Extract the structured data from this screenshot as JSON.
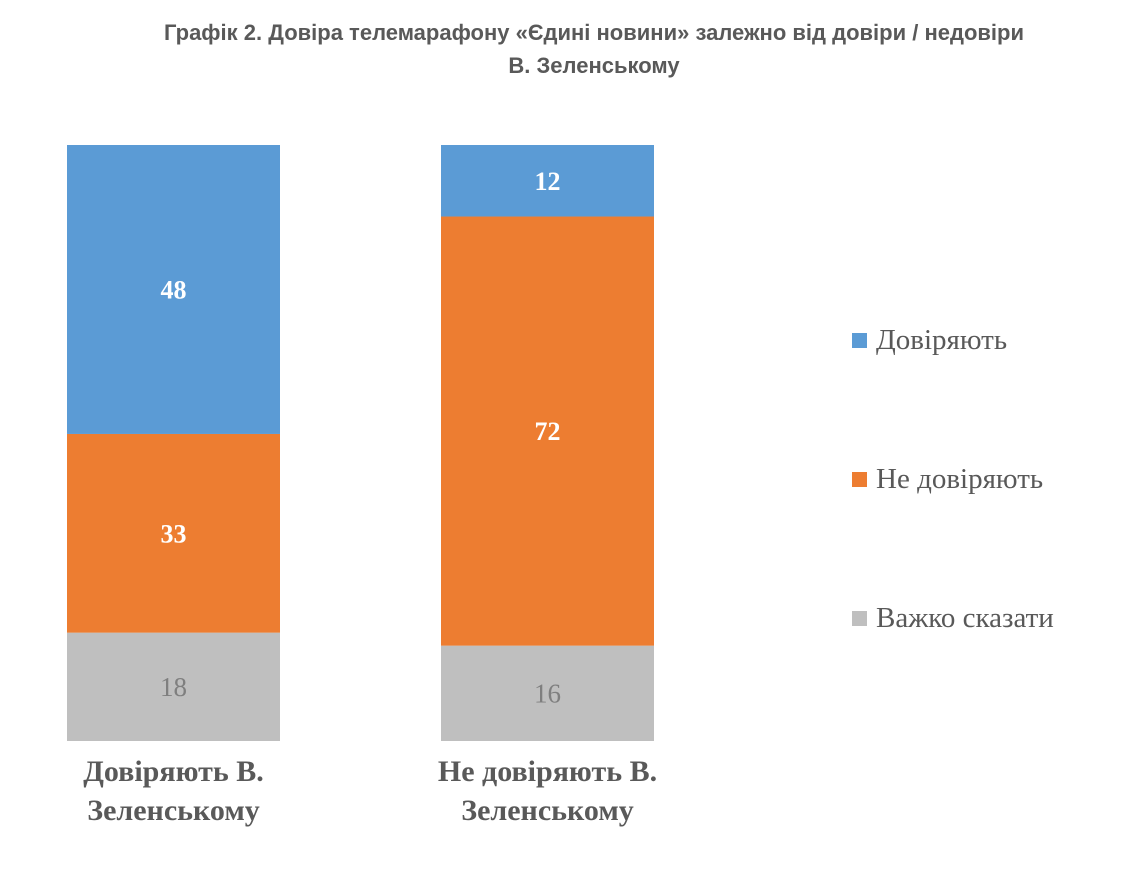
{
  "title": {
    "line1": "Графік 2. Довіра телемарафону «Єдині новини» залежно від довіри / недовіри",
    "line2": "В. Зеленському"
  },
  "chart_data": {
    "type": "bar",
    "stacked": true,
    "title": "Графік 2. Довіра телемарафону «Єдині новини» залежно від довіри / недовіри В. Зеленському",
    "categories": [
      [
        "Довіряють В.",
        "Зеленському"
      ],
      [
        "Не довіряють В.",
        "Зеленському"
      ]
    ],
    "series": [
      {
        "name": "Довіряють",
        "color": "#5b9bd5",
        "label_color": "#ffffff",
        "values": [
          48,
          12
        ]
      },
      {
        "name": "Не довіряють",
        "color": "#ed7d31",
        "label_color": "#ffffff",
        "values": [
          33,
          72
        ]
      },
      {
        "name": "Важко сказати",
        "color": "#bfbfbf",
        "label_color": "#7f7f7f",
        "values": [
          18,
          16
        ]
      }
    ],
    "ylim": [
      0,
      100
    ],
    "grid": false,
    "legend_position": "right"
  }
}
